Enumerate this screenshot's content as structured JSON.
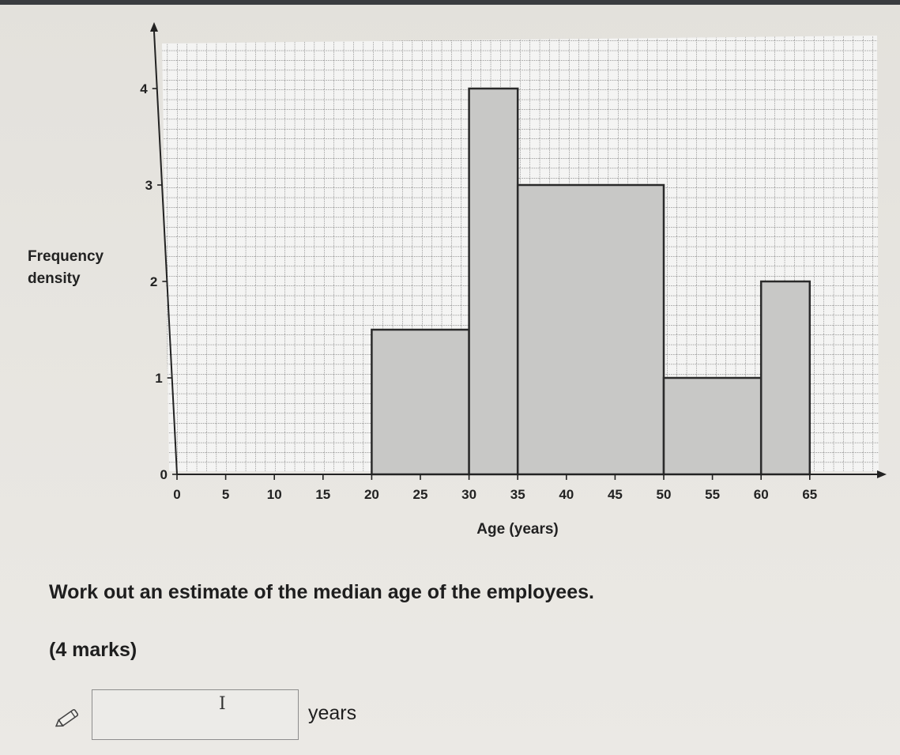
{
  "chart_data": {
    "type": "histogram",
    "xlabel": "Age (years)",
    "ylabel_lines": [
      "Frequency",
      "density"
    ],
    "xlim": [
      0,
      65
    ],
    "ylim": [
      0,
      4
    ],
    "x_ticks": [
      0,
      5,
      10,
      15,
      20,
      25,
      30,
      35,
      40,
      45,
      50,
      55,
      60,
      65
    ],
    "y_ticks": [
      0,
      1,
      2,
      3,
      4
    ],
    "grid": true,
    "bar_color": "#c8c8c6",
    "bars": [
      {
        "x_start": 20,
        "x_end": 30,
        "frequency_density": 1.5
      },
      {
        "x_start": 30,
        "x_end": 35,
        "frequency_density": 4
      },
      {
        "x_start": 35,
        "x_end": 50,
        "frequency_density": 3
      },
      {
        "x_start": 50,
        "x_end": 60,
        "frequency_density": 1
      },
      {
        "x_start": 60,
        "x_end": 65,
        "frequency_density": 2
      }
    ]
  },
  "question": {
    "text": "Work out an estimate of the median age of the employees.",
    "marks": "(4 marks)"
  },
  "answer": {
    "value": "",
    "unit": "years",
    "icon": "pencil-icon"
  }
}
